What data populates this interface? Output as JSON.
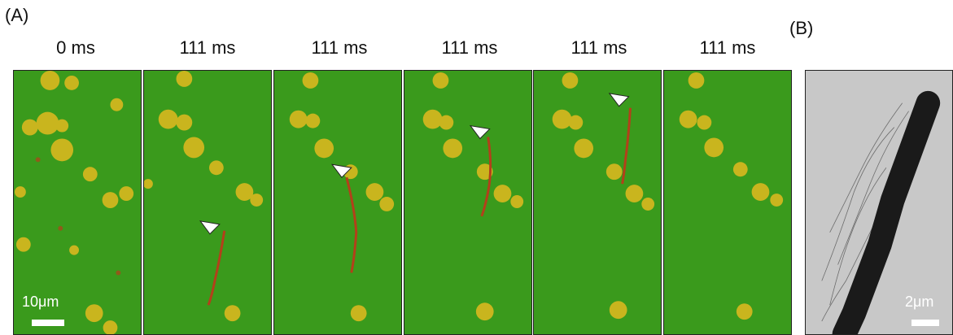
{
  "panelA": {
    "label": "(A)",
    "frames": [
      {
        "time": "0 ms"
      },
      {
        "time": "111 ms"
      },
      {
        "time": "111 ms"
      },
      {
        "time": "111 ms"
      },
      {
        "time": "111 ms"
      },
      {
        "time": "111 ms"
      }
    ],
    "scalebar": "10μm"
  },
  "panelB": {
    "label": "(B)",
    "scalebar": "2μm"
  },
  "colors": {
    "background_green": "#3a9a1c",
    "cluster_yellow": "#d9b81f",
    "filament_red": "#b3401a",
    "tem_background": "#c8c8c8",
    "tem_cell": "#1a1a1a"
  }
}
